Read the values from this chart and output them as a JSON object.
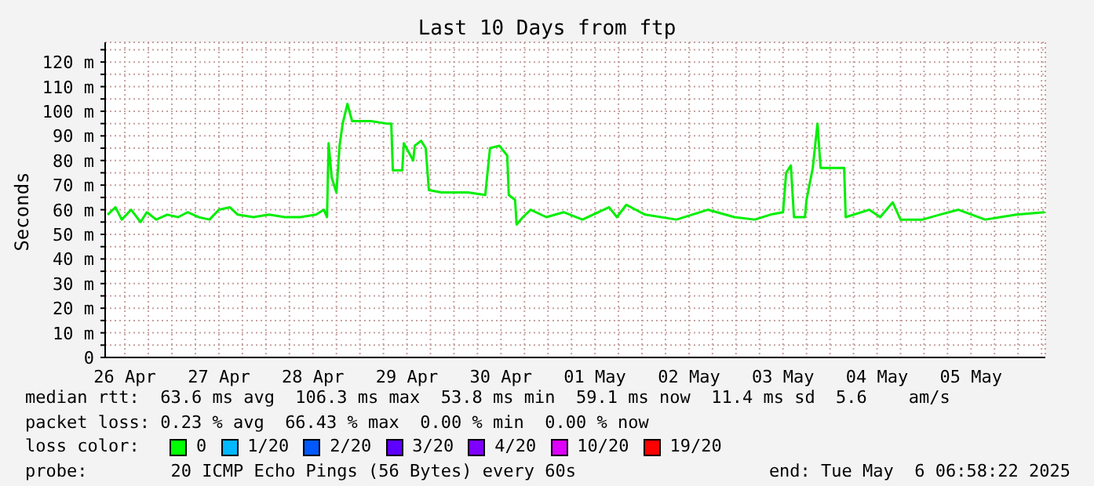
{
  "chart_data": {
    "type": "line",
    "title": "Last 10 Days from ftp",
    "ylabel": "Seconds",
    "x": [
      "2025-04-26T07:36",
      "2025-04-26T09:36",
      "2025-04-26T11:12",
      "2025-04-26T13:36",
      "2025-04-26T16:00",
      "2025-04-26T17:36",
      "2025-04-26T20:00",
      "2025-04-26T22:48",
      "2025-04-27T01:36",
      "2025-04-27T04:00",
      "2025-04-27T06:48",
      "2025-04-27T09:36",
      "2025-04-27T12:00",
      "2025-04-27T14:48",
      "2025-04-27T16:48",
      "2025-04-27T20:48",
      "2025-04-28T00:48",
      "2025-04-28T04:48",
      "2025-04-28T08:48",
      "2025-04-28T12:48",
      "2025-04-28T14:48",
      "2025-04-28T15:36",
      "2025-04-28T16:00",
      "2025-04-28T16:48",
      "2025-04-28T18:00",
      "2025-04-28T18:48",
      "2025-04-28T19:36",
      "2025-04-28T20:48",
      "2025-04-28T22:00",
      "2025-04-29T02:48",
      "2025-04-29T06:48",
      "2025-04-29T08:00",
      "2025-04-29T08:24",
      "2025-04-29T10:48",
      "2025-04-29T11:12",
      "2025-04-29T13:36",
      "2025-04-29T14:00",
      "2025-04-29T15:36",
      "2025-04-29T16:48",
      "2025-04-29T17:36",
      "2025-04-29T20:48",
      "2025-04-30T02:00",
      "2025-04-30T03:36",
      "2025-04-30T08:00",
      "2025-04-30T09:12",
      "2025-04-30T11:36",
      "2025-04-30T13:36",
      "2025-04-30T14:00",
      "2025-04-30T15:36",
      "2025-04-30T16:00",
      "2025-04-30T17:36",
      "2025-04-30T19:36",
      "2025-04-30T23:36",
      "2025-05-01T04:00",
      "2025-05-01T08:48",
      "2025-05-01T15:36",
      "2025-05-01T17:36",
      "2025-05-01T20:00",
      "2025-05-02T00:48",
      "2025-05-02T08:48",
      "2025-05-02T16:48",
      "2025-05-02T23:36",
      "2025-05-03T04:48",
      "2025-05-03T08:48",
      "2025-05-03T12:00",
      "2025-05-03T12:48",
      "2025-05-03T14:00",
      "2025-05-03T14:48",
      "2025-05-03T17:36",
      "2025-05-03T18:00",
      "2025-05-03T19:36",
      "2025-05-03T20:48",
      "2025-05-03T21:36",
      "2025-05-04T03:36",
      "2025-05-04T04:00",
      "2025-05-04T10:00",
      "2025-05-04T12:48",
      "2025-05-04T16:00",
      "2025-05-04T18:00",
      "2025-05-04T23:36",
      "2025-05-05T04:00",
      "2025-05-05T08:48",
      "2025-05-05T15:36",
      "2025-05-05T23:36",
      "2025-05-06T06:48"
    ],
    "series": [
      {
        "color": "#00ee00",
        "values": [
          58,
          61,
          56,
          60,
          55,
          59,
          56,
          58,
          57,
          59,
          57,
          56,
          60,
          61,
          58,
          57,
          58,
          57,
          57,
          58,
          60,
          57,
          87,
          73,
          67,
          86,
          95,
          103,
          96,
          96,
          95,
          95,
          76,
          76,
          87,
          80,
          86,
          88,
          85,
          68,
          67,
          67,
          67,
          66,
          85,
          86,
          82,
          66,
          64,
          54,
          57,
          60,
          57,
          59,
          56,
          61,
          57,
          62,
          58,
          56,
          60,
          57,
          56,
          58,
          59,
          75,
          78,
          57,
          57,
          64,
          77,
          95,
          77,
          77,
          57,
          60,
          57,
          63,
          56,
          56,
          58,
          60,
          56,
          58,
          59
        ]
      }
    ],
    "xlim": [
      "2025-04-26T06:58",
      "2025-05-06T06:58"
    ],
    "xticks": [
      {
        "value": "2025-04-26T12:00",
        "label": "26 Apr"
      },
      {
        "value": "2025-04-26T18:00",
        "label": null
      },
      {
        "value": "2025-04-27T00:00",
        "label": null
      },
      {
        "value": "2025-04-27T06:00",
        "label": null
      },
      {
        "value": "2025-04-27T12:00",
        "label": "27 Apr"
      },
      {
        "value": "2025-04-27T18:00",
        "label": null
      },
      {
        "value": "2025-04-28T00:00",
        "label": null
      },
      {
        "value": "2025-04-28T06:00",
        "label": null
      },
      {
        "value": "2025-04-28T12:00",
        "label": "28 Apr"
      },
      {
        "value": "2025-04-28T18:00",
        "label": null
      },
      {
        "value": "2025-04-29T00:00",
        "label": null
      },
      {
        "value": "2025-04-29T06:00",
        "label": null
      },
      {
        "value": "2025-04-29T12:00",
        "label": "29 Apr"
      },
      {
        "value": "2025-04-29T18:00",
        "label": null
      },
      {
        "value": "2025-04-30T00:00",
        "label": null
      },
      {
        "value": "2025-04-30T06:00",
        "label": null
      },
      {
        "value": "2025-04-30T12:00",
        "label": "30 Apr"
      },
      {
        "value": "2025-04-30T18:00",
        "label": null
      },
      {
        "value": "2025-05-01T00:00",
        "label": null
      },
      {
        "value": "2025-05-01T06:00",
        "label": null
      },
      {
        "value": "2025-05-01T12:00",
        "label": "01 May"
      },
      {
        "value": "2025-05-01T18:00",
        "label": null
      },
      {
        "value": "2025-05-02T00:00",
        "label": null
      },
      {
        "value": "2025-05-02T06:00",
        "label": null
      },
      {
        "value": "2025-05-02T12:00",
        "label": "02 May"
      },
      {
        "value": "2025-05-02T18:00",
        "label": null
      },
      {
        "value": "2025-05-03T00:00",
        "label": null
      },
      {
        "value": "2025-05-03T06:00",
        "label": null
      },
      {
        "value": "2025-05-03T12:00",
        "label": "03 May"
      },
      {
        "value": "2025-05-03T18:00",
        "label": null
      },
      {
        "value": "2025-05-04T00:00",
        "label": null
      },
      {
        "value": "2025-05-04T06:00",
        "label": null
      },
      {
        "value": "2025-05-04T12:00",
        "label": "04 May"
      },
      {
        "value": "2025-05-04T18:00",
        "label": null
      },
      {
        "value": "2025-05-05T00:00",
        "label": null
      },
      {
        "value": "2025-05-05T06:00",
        "label": null
      },
      {
        "value": "2025-05-05T12:00",
        "label": "05 May"
      },
      {
        "value": "2025-05-05T18:00",
        "label": null
      },
      {
        "value": "2025-05-06T00:00",
        "label": null
      },
      {
        "value": "2025-05-06T06:00",
        "label": null
      }
    ],
    "ylim": [
      0,
      128
    ],
    "yticks": [
      0,
      {
        "value": 5,
        "label": null
      },
      {
        "value": 10,
        "label": "10 m"
      },
      {
        "value": 15,
        "label": null
      },
      {
        "value": 20,
        "label": "20 m"
      },
      {
        "value": 25,
        "label": null
      },
      {
        "value": 30,
        "label": "30 m"
      },
      {
        "value": 35,
        "label": null
      },
      {
        "value": 40,
        "label": "40 m"
      },
      {
        "value": 45,
        "label": null
      },
      {
        "value": 50,
        "label": "50 m"
      },
      {
        "value": 55,
        "label": null
      },
      {
        "value": 60,
        "label": "60 m"
      },
      {
        "value": 65,
        "label": null
      },
      {
        "value": 70,
        "label": "70 m"
      },
      {
        "value": 75,
        "label": null
      },
      {
        "value": 80,
        "label": "80 m"
      },
      {
        "value": 85,
        "label": null
      },
      {
        "value": 90,
        "label": "90 m"
      },
      {
        "value": 95,
        "label": null
      },
      {
        "value": 100,
        "label": "100 m"
      },
      {
        "value": 105,
        "label": null
      },
      {
        "value": 110,
        "label": "110 m"
      },
      {
        "value": 115,
        "label": null
      },
      {
        "value": 120,
        "label": "120 m"
      },
      {
        "value": 125,
        "label": null
      }
    ],
    "grid": true,
    "marker": "none",
    "line_style": "solid",
    "annotations": [
      "median rtt:  63.6 ms avg  106.3 ms max  53.8 ms min  59.1 ms now  11.4 ms sd  5.6    am/s",
      "packet loss: 0.23 % avg  66.43 % max  0.00 % min  0.00 % now",
      "loss color:",
      "0",
      "1/20",
      "2/20",
      "3/20",
      "4/20",
      "10/20",
      "19/20",
      "probe:        20 ICMP Echo Pings (56 Bytes) every 60s",
      "end: Tue May  6 06:58:22 2025"
    ]
  }
}
